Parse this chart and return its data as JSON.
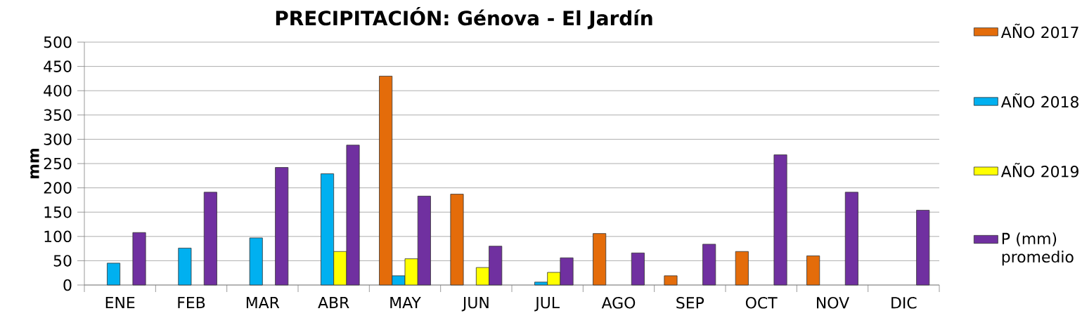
{
  "chart_data": {
    "type": "bar",
    "title": "PRECIPITACIÓN: Génova - El Jardín",
    "ylabel": "mm",
    "categories": [
      "ENE",
      "FEB",
      "MAR",
      "ABR",
      "MAY",
      "JUN",
      "JUL",
      "AGO",
      "SEP",
      "OCT",
      "NOV",
      "DIC"
    ],
    "series": [
      {
        "name": "AÑO 2017",
        "color": "#e46c0a",
        "values": [
          null,
          null,
          null,
          null,
          430,
          187,
          null,
          106,
          19,
          69,
          60,
          null
        ]
      },
      {
        "name": "AÑO 2018",
        "color": "#00b0f0",
        "values": [
          45,
          76,
          97,
          229,
          19,
          null,
          6,
          null,
          null,
          null,
          null,
          null
        ]
      },
      {
        "name": "AÑO 2019",
        "color": "#ffff00",
        "values": [
          null,
          null,
          null,
          69,
          54,
          36,
          26,
          null,
          null,
          null,
          null,
          null
        ]
      },
      {
        "name": "P (mm) promedio",
        "color": "#7030a0",
        "values": [
          108,
          191,
          242,
          288,
          183,
          80,
          56,
          66,
          84,
          268,
          191,
          154
        ]
      }
    ],
    "ylim": [
      0,
      500
    ],
    "yticks": [
      0,
      50,
      100,
      150,
      200,
      250,
      300,
      350,
      400,
      450,
      500
    ],
    "grid": "y",
    "legend": "right"
  }
}
